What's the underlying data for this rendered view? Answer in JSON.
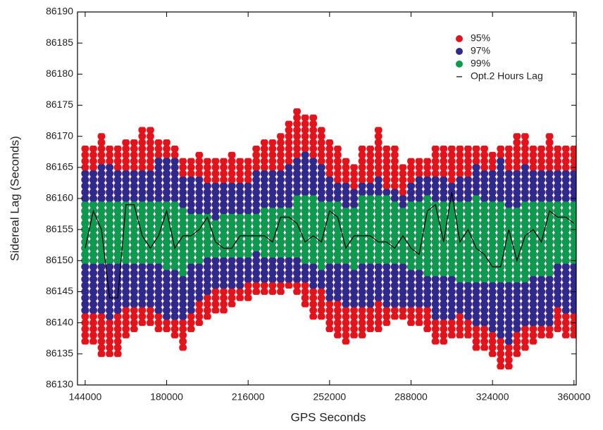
{
  "chart_data": {
    "type": "range-dots",
    "x_label": "GPS Seconds",
    "y_label": "Sidereal Lag (Seconds)",
    "xlim": [
      140600,
      361000
    ],
    "ylim": [
      86130,
      86190
    ],
    "xticks": [
      144000,
      180000,
      216000,
      252000,
      288000,
      324000,
      360000
    ],
    "yticks": [
      86130,
      86135,
      86140,
      86145,
      86150,
      86155,
      86160,
      86165,
      86170,
      86175,
      86180,
      86185,
      86190
    ],
    "x": [
      144000,
      147600,
      151200,
      154800,
      158400,
      162000,
      165600,
      169200,
      172800,
      176400,
      180000,
      183600,
      187200,
      190800,
      194400,
      198000,
      201600,
      205200,
      208800,
      212400,
      216000,
      219600,
      223200,
      226800,
      230400,
      234000,
      237600,
      241200,
      244800,
      248400,
      252000,
      255600,
      259200,
      262800,
      266400,
      270000,
      273600,
      277200,
      280800,
      284400,
      288000,
      291600,
      295200,
      298800,
      302400,
      306000,
      309600,
      313200,
      316800,
      320400,
      324000,
      327600,
      331200,
      334800,
      338400,
      342000,
      345600,
      349200,
      352800,
      356400,
      360000
    ],
    "series": [
      {
        "name": "95%",
        "color": "#e0141c",
        "low": [
          86137,
          86137,
          86135,
          86135,
          86135,
          86138,
          86139,
          86140,
          86140,
          86139,
          86139,
          86138,
          86136,
          86139,
          86140,
          86141,
          86142,
          86142,
          86143,
          86144,
          86144,
          86145,
          86145,
          86145,
          86145,
          86146,
          86145,
          86143,
          86141,
          86141,
          86139,
          86138,
          86137,
          86138,
          86138,
          86139,
          86139,
          86140,
          86141,
          86141,
          86140,
          86140,
          86139,
          86137,
          86137,
          86138,
          86138,
          86138,
          86136,
          86136,
          86135,
          86133,
          86133,
          86135,
          86136,
          86137,
          86138,
          86138,
          86139,
          86138,
          86138
        ],
        "high": [
          86168,
          86168,
          86170,
          86168,
          86168,
          86169,
          86169,
          86171,
          86171,
          86169,
          86169,
          86168,
          86166,
          86166,
          86167,
          86166,
          86166,
          86166,
          86167,
          86166,
          86166,
          86168,
          86169,
          86169,
          86170,
          86172,
          86174,
          86173,
          86173,
          86171,
          86169,
          86168,
          86166,
          86165,
          86168,
          86168,
          86171,
          86168,
          86168,
          86165,
          86166,
          86166,
          86166,
          86168,
          86168,
          86168,
          86168,
          86168,
          86168,
          86168,
          86167,
          86168,
          86168,
          86170,
          86170,
          86168,
          86168,
          86170,
          86168,
          86168,
          86168
        ]
      },
      {
        "name": "97%",
        "color": "#2e2a8c",
        "low": [
          86142,
          86142,
          86142,
          86141,
          86142,
          86143,
          86143,
          86143,
          86143,
          86142,
          86141,
          86141,
          86141,
          86142,
          86144,
          86145,
          86146,
          86146,
          86146,
          86146,
          86147,
          86147,
          86147,
          86147,
          86147,
          86147,
          86147,
          86147,
          86146,
          86146,
          86144,
          86144,
          86143,
          86143,
          86143,
          86143,
          86144,
          86143,
          86143,
          86143,
          86143,
          86143,
          86143,
          86141,
          86141,
          86141,
          86142,
          86141,
          86140,
          86140,
          86139,
          86138,
          86137,
          86139,
          86140,
          86140,
          86140,
          86140,
          86143,
          86142,
          86142
        ],
        "high": [
          86164,
          86164,
          86165,
          86165,
          86164,
          86164,
          86164,
          86164,
          86164,
          86166,
          86166,
          86166,
          86163,
          86163,
          86163,
          86162,
          86162,
          86162,
          86162,
          86162,
          86162,
          86164,
          86164,
          86164,
          86164,
          86165,
          86166,
          86167,
          86166,
          86165,
          86163,
          86162,
          86162,
          86161,
          86162,
          86162,
          86163,
          86161,
          86161,
          86160,
          86162,
          86163,
          86163,
          86163,
          86163,
          86162,
          86163,
          86163,
          86165,
          86164,
          86164,
          86166,
          86164,
          86164,
          86165,
          86164,
          86164,
          86164,
          86164,
          86164,
          86164
        ]
      },
      {
        "name": "99%",
        "color": "#0c9a4e",
        "low": [
          86150,
          86150,
          86150,
          86150,
          86150,
          86150,
          86150,
          86150,
          86150,
          86150,
          86149,
          86149,
          86148,
          86150,
          86150,
          86151,
          86151,
          86151,
          86151,
          86151,
          86151,
          86152,
          86151,
          86151,
          86151,
          86151,
          86151,
          86150,
          86150,
          86149,
          86150,
          86150,
          86150,
          86149,
          86150,
          86150,
          86150,
          86150,
          86150,
          86150,
          86149,
          86149,
          86148,
          86148,
          86148,
          86148,
          86147,
          86147,
          86147,
          86147,
          86147,
          86147,
          86147,
          86147,
          86147,
          86148,
          86148,
          86148,
          86150,
          86150,
          86150
        ],
        "high": [
          86159,
          86159,
          86159,
          86159,
          86159,
          86159,
          86159,
          86159,
          86159,
          86159,
          86159,
          86159,
          86158,
          86157,
          86157,
          86157,
          86156,
          86157,
          86157,
          86157,
          86157,
          86157,
          86158,
          86158,
          86158,
          86158,
          86160,
          86160,
          86160,
          86159,
          86159,
          86159,
          86158,
          86158,
          86160,
          86160,
          86160,
          86160,
          86159,
          86158,
          86159,
          86159,
          86160,
          86159,
          86159,
          86159,
          86159,
          86159,
          86160,
          86159,
          86159,
          86159,
          86158,
          86158,
          86159,
          86159,
          86159,
          86159,
          86159,
          86159,
          86159
        ]
      },
      {
        "name": "Opt.2 Hours Lag",
        "color": "#000000",
        "values": [
          86152,
          86158,
          86155,
          86144,
          86144,
          86159,
          86159,
          86154,
          86152,
          86154,
          86158,
          86152,
          86154,
          86154,
          86155,
          86157,
          86153,
          86152,
          86152,
          86154,
          86154,
          86154,
          86154,
          86153,
          86157,
          86157,
          86156,
          86153,
          86154,
          86153,
          86158,
          86157,
          86152,
          86154,
          86154,
          86154,
          86153,
          86153,
          86152,
          86154,
          86152,
          86151,
          86158,
          86159,
          86153,
          86161,
          86153,
          86155,
          86152,
          86151,
          86149,
          86149,
          86155,
          86150,
          86154,
          86155,
          86153,
          86158,
          86157,
          86157,
          86156
        ]
      }
    ]
  }
}
